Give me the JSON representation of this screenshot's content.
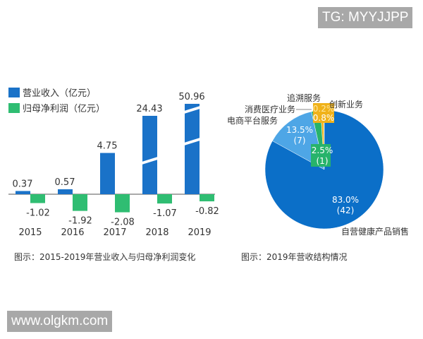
{
  "watermarks": {
    "top": "TG: MYYJJPP",
    "bottom": "www.olgkm.com"
  },
  "colors": {
    "revenue": "#1a72c8",
    "profit": "#2fbd72",
    "pie_main": "#0b6fc8",
    "pie_light": "#4ea6e6",
    "pie_green": "#27b36b",
    "pie_yellow": "#f0b21a"
  },
  "chart_data": [
    {
      "type": "bar",
      "caption": "图示：2015-2019年营业收入与归母净利润变化",
      "categories": [
        "2015",
        "2016",
        "2017",
        "2018",
        "2019"
      ],
      "series": [
        {
          "name": "营业收入（亿元）",
          "values": [
            0.37,
            0.57,
            4.75,
            24.43,
            50.96
          ],
          "labels": [
            "0.37",
            "0.57",
            "4.75",
            "24.43",
            "50.96"
          ]
        },
        {
          "name": "归母净利润（亿元）",
          "values": [
            -1.02,
            -1.92,
            -2.08,
            -1.07,
            -0.82
          ],
          "labels": [
            "-1.02",
            "-1.92",
            "-2.08",
            "-1.07",
            "-0.82"
          ]
        }
      ],
      "broken_axis_bars": [
        "2018",
        "2019"
      ],
      "legend": "top-left",
      "grid": false
    },
    {
      "type": "pie",
      "caption": "图示：2019年营收结构情况",
      "slices": [
        {
          "name": "自营健康产品销售",
          "percent": 83.0,
          "value": 42,
          "pct_label": "83.0%",
          "val_label": "(42)"
        },
        {
          "name": "电商平台服务",
          "percent": 13.5,
          "value": 7,
          "pct_label": "13.5%",
          "val_label": "(7)"
        },
        {
          "name": "消费医疗业务",
          "percent": 2.5,
          "value": 1,
          "pct_label": "2.5%",
          "val_label": "(1)"
        },
        {
          "name": "创新业务",
          "percent": 0.8,
          "pct_label": "0.8%"
        },
        {
          "name": "追溯服务",
          "percent": 0.2,
          "pct_label": "0.2%"
        }
      ]
    }
  ]
}
